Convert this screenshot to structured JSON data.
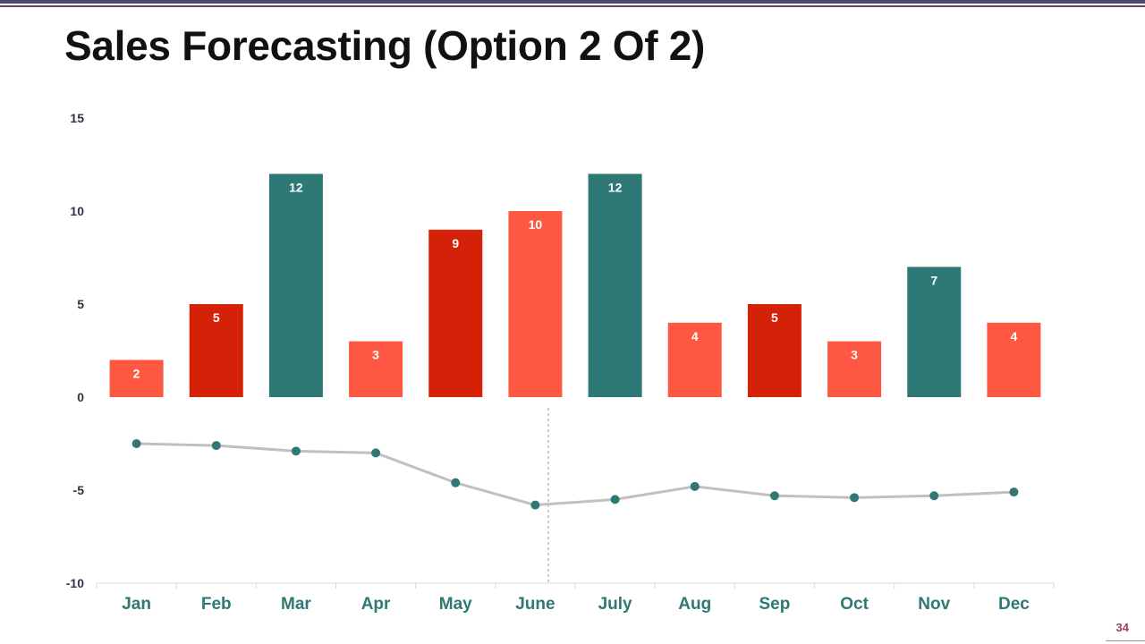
{
  "slide": {
    "title": "Sales Forecasting (Option 2 Of 2)",
    "page_number": "34"
  },
  "colors": {
    "teal": "#2e7876",
    "dark_red": "#d42108",
    "coral": "#ff5842",
    "line": "#c0c0c0",
    "marker": "#2e7876",
    "category_label": "#2e7876",
    "axis_label": "#333344"
  },
  "chart_data": {
    "type": "bar",
    "categories": [
      "Jan",
      "Feb",
      "Mar",
      "Apr",
      "May",
      "June",
      "July",
      "Aug",
      "Sep",
      "Oct",
      "Nov",
      "Dec"
    ],
    "series": [
      {
        "type": "bar",
        "values": [
          2,
          5,
          12,
          3,
          9,
          10,
          12,
          4,
          5,
          3,
          7,
          4
        ],
        "bar_colors": [
          "coral",
          "dark_red",
          "teal",
          "coral",
          "dark_red",
          "coral",
          "teal",
          "coral",
          "dark_red",
          "coral",
          "teal",
          "coral"
        ]
      },
      {
        "type": "line",
        "values": [
          -2.5,
          -2.6,
          -2.9,
          -3.0,
          -4.6,
          -5.8,
          -5.5,
          -4.8,
          -5.3,
          -5.4,
          -5.3,
          -5.1
        ]
      }
    ],
    "yticks": [
      "15",
      "10",
      "5",
      "0",
      "-5",
      "-10"
    ],
    "ylim": [
      -10,
      15
    ],
    "grid": false,
    "legend": "none"
  }
}
